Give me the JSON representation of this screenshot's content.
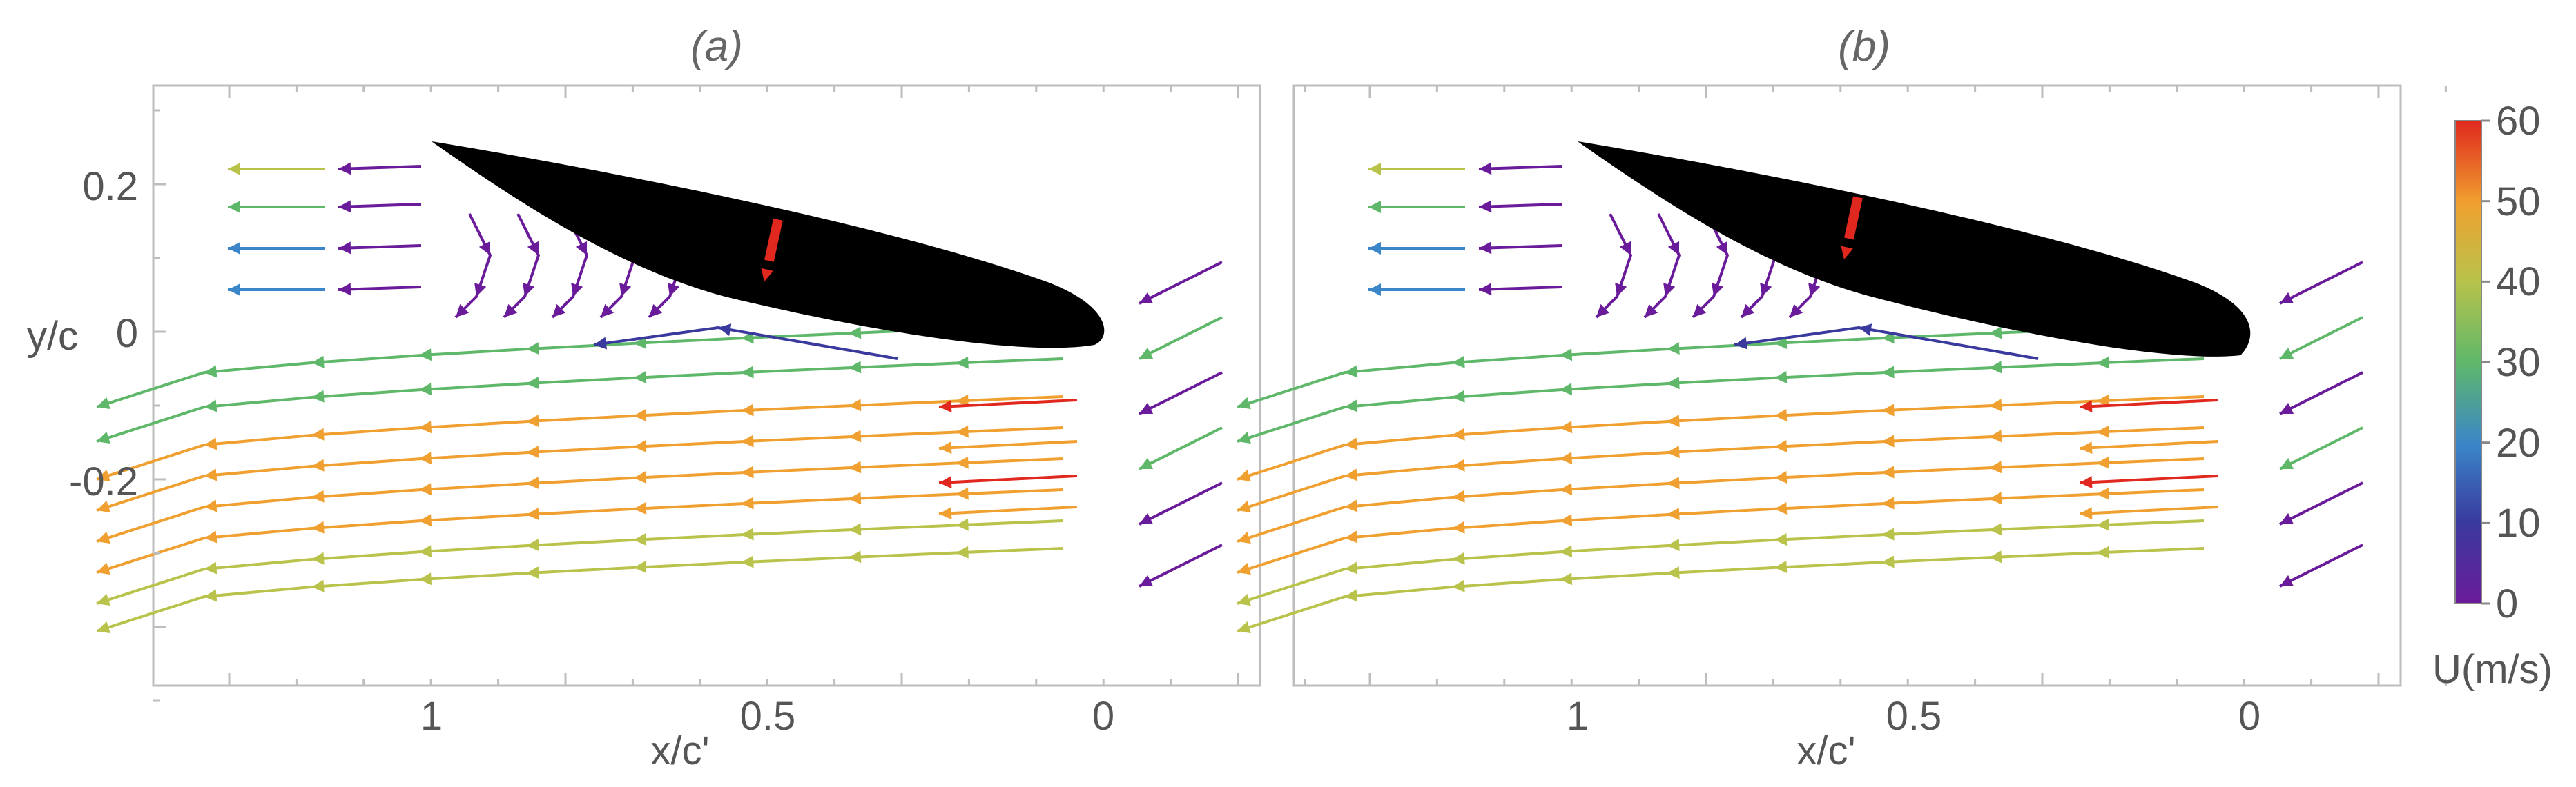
{
  "chart_data": [
    {
      "type": "streamline",
      "title": "(a)",
      "xlabel": "x/c'",
      "ylabel": "y/c",
      "x_ticks": [
        1,
        0.5,
        0
      ],
      "x_tick_labels": [
        "1",
        "0.5",
        "0"
      ],
      "y_ticks": [
        0.2,
        0,
        -0.2
      ],
      "y_tick_labels": [
        "0.2",
        "0",
        "-0.2"
      ],
      "xlim": [
        1.41,
        -0.23
      ],
      "ylim": [
        -0.48,
        0.33
      ],
      "arrow_marker": {
        "x": 0.5,
        "y": 0.07
      }
    },
    {
      "type": "streamline",
      "title": "(b)",
      "xlabel": "x/c'",
      "ylabel": "",
      "x_ticks": [
        1,
        0.5,
        0
      ],
      "x_tick_labels": [
        "1",
        "0.5",
        "0"
      ],
      "xlim": [
        1.41,
        -0.23
      ],
      "ylim": [
        -0.48,
        0.33
      ],
      "arrow_marker": {
        "x": 0.59,
        "y": 0.1
      }
    }
  ],
  "colorbar": {
    "label": "U(m/s)",
    "min": 0,
    "max": 60,
    "ticks": [
      0,
      10,
      20,
      30,
      40,
      50,
      60
    ],
    "tick_labels": [
      "0",
      "10",
      "20",
      "30",
      "40",
      "50",
      "60"
    ],
    "colors": [
      "#6a1b9a",
      "#3a3a9e",
      "#3a86c8",
      "#5fb86a",
      "#b9c24a",
      "#f0a030",
      "#e0281e"
    ]
  }
}
